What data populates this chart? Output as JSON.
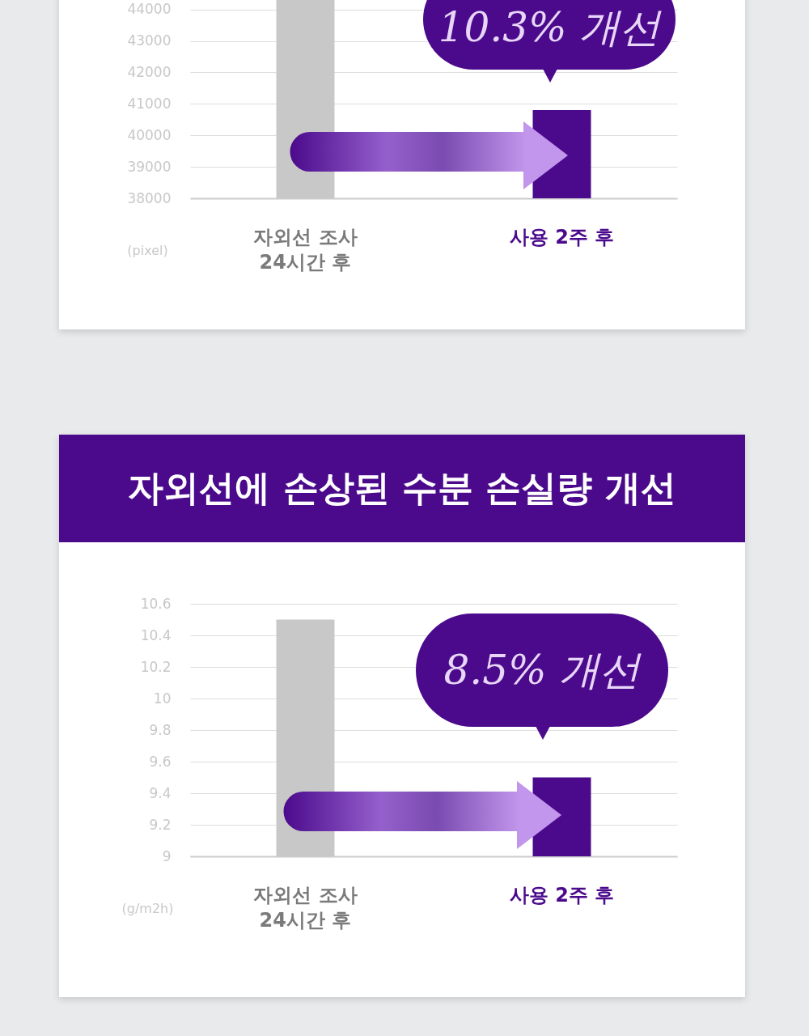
{
  "chart_data": [
    {
      "type": "bar",
      "ylabel": "(pixel)",
      "categories": [
        "자외선 조사\n24시간 후",
        "사용 2주 후"
      ],
      "values": [
        44300,
        40800
      ],
      "colors": [
        "#c8c8c8",
        "#4b0a8c"
      ],
      "ylim": [
        38000,
        44300
      ],
      "yticks": [
        38000,
        39000,
        40000,
        41000,
        42000,
        43000,
        44000
      ],
      "grid": "y",
      "annotations": [
        "10.3% 개선"
      ]
    },
    {
      "type": "bar",
      "title": "자외선에 손상된 수분 손실량 개선",
      "ylabel": "(g/m2h)",
      "categories": [
        "자외선 조사\n24시간 후",
        "사용 2주 후"
      ],
      "values": [
        10.5,
        9.5
      ],
      "colors": [
        "#c8c8c8",
        "#4b0a8c"
      ],
      "ylim": [
        9,
        10.6
      ],
      "yticks": [
        9,
        9.2,
        9.4,
        9.6,
        9.8,
        10,
        10.2,
        10.4,
        10.6
      ],
      "grid": "y",
      "annotations": [
        "8.5% 개선"
      ]
    }
  ]
}
